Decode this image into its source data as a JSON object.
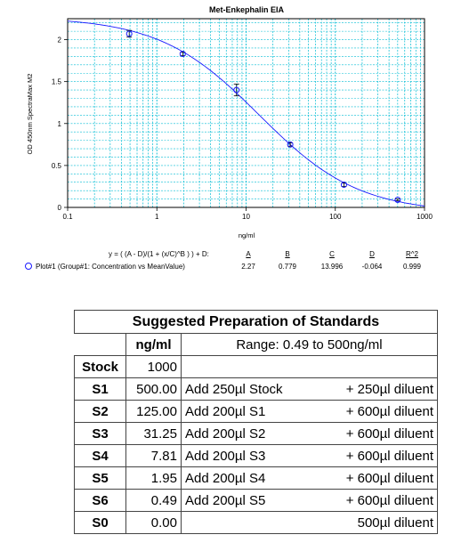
{
  "chart_data": {
    "type": "scatter",
    "title": "Met-Enkephalin EIA",
    "xlabel": "ng/ml",
    "ylabel": "OD 450nm SpectraMax M2",
    "x_scale": "log",
    "xlim": [
      0.1,
      1000
    ],
    "ylim": [
      0,
      2.25
    ],
    "x_ticks": [
      "0.1",
      "1",
      "10",
      "100",
      "1000"
    ],
    "y_ticks": [
      "0",
      "0.5",
      "1",
      "1.5",
      "2"
    ],
    "grid": true,
    "series": [
      {
        "name": "Plot#1 (Group#1: Concentration vs MeanValue)",
        "x": [
          0.49,
          1.95,
          7.81,
          31.25,
          125,
          500
        ],
        "y": [
          2.07,
          1.83,
          1.4,
          0.75,
          0.27,
          0.09
        ],
        "err": [
          0.04,
          0.02,
          0.07,
          0.02,
          0.02,
          0.01
        ]
      }
    ],
    "fit": {
      "equation": "y = ( (A - D)/(1 + (x/C)^B ) ) + D:",
      "params": [
        {
          "name": "A",
          "value": "2.27"
        },
        {
          "name": "B",
          "value": "0.779"
        },
        {
          "name": "C",
          "value": "13.996"
        },
        {
          "name": "D",
          "value": "-0.064"
        },
        {
          "name": "R^2",
          "value": "0.999"
        }
      ],
      "A": 2.27,
      "B": 0.779,
      "C": 13.996,
      "D": -0.064
    },
    "colors": {
      "series": "#1a1aff",
      "grid": "#00bcd4"
    }
  },
  "table": {
    "title": "Suggested Preparation of Standards",
    "unit_header": "ng/ml",
    "range": "Range: 0.49 to 500ng/ml",
    "rows": [
      {
        "label": "Stock",
        "conc": "1000",
        "add": "",
        "diluent": ""
      },
      {
        "label": "S1",
        "conc": "500.00",
        "add": "Add 250µl Stock",
        "diluent": "+ 250µl diluent"
      },
      {
        "label": "S2",
        "conc": "125.00",
        "add": "Add 200µl S1",
        "diluent": "+ 600µl diluent"
      },
      {
        "label": "S3",
        "conc": "31.25",
        "add": "Add 200µl S2",
        "diluent": "+ 600µl diluent"
      },
      {
        "label": "S4",
        "conc": "7.81",
        "add": "Add 200µl S3",
        "diluent": "+ 600µl diluent"
      },
      {
        "label": "S5",
        "conc": "1.95",
        "add": "Add 200µl S4",
        "diluent": "+ 600µl diluent"
      },
      {
        "label": "S6",
        "conc": "0.49",
        "add": "Add 200µl S5",
        "diluent": "+ 600µl diluent"
      },
      {
        "label": "S0",
        "conc": "0.00",
        "add": "",
        "diluent": "500µl diluent"
      }
    ]
  }
}
